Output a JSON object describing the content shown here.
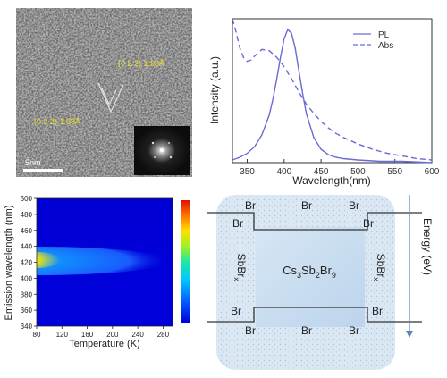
{
  "tem": {
    "lattice_label_1": "(0 2 2) 1.98Å",
    "lattice_label_2": "(0 2 2) 1.98Å",
    "scale_bar_label": "5nm"
  },
  "chart_data": [
    {
      "type": "line",
      "xlabel": "Wavelength(nm)",
      "ylabel": "Intensity (a.u.)",
      "xlim": [
        330,
        600
      ],
      "ylim": [
        0,
        1.08
      ],
      "xticks": [
        350,
        400,
        450,
        500,
        550,
        600
      ],
      "legend_position": "top-right",
      "series": [
        {
          "name": "PL",
          "style": "solid",
          "color": "#6a6ad6",
          "x": [
            330,
            340,
            350,
            360,
            370,
            380,
            385,
            390,
            395,
            400,
            405,
            410,
            415,
            420,
            425,
            430,
            440,
            450,
            460,
            470,
            480,
            500,
            530,
            560,
            600
          ],
          "y": [
            0.02,
            0.04,
            0.07,
            0.12,
            0.21,
            0.36,
            0.48,
            0.63,
            0.79,
            0.93,
            1.0,
            0.97,
            0.86,
            0.69,
            0.52,
            0.37,
            0.19,
            0.1,
            0.06,
            0.04,
            0.03,
            0.02,
            0.01,
            0.01,
            0.0
          ]
        },
        {
          "name": "Abs",
          "style": "dashed",
          "color": "#6a6ad6",
          "x": [
            330,
            335,
            340,
            345,
            350,
            355,
            360,
            370,
            380,
            390,
            400,
            410,
            420,
            430,
            440,
            450,
            460,
            470,
            480,
            500,
            520,
            540,
            560,
            580,
            600
          ],
          "y": [
            1.08,
            0.98,
            0.86,
            0.79,
            0.76,
            0.77,
            0.8,
            0.85,
            0.84,
            0.79,
            0.72,
            0.63,
            0.53,
            0.44,
            0.37,
            0.31,
            0.26,
            0.22,
            0.19,
            0.14,
            0.1,
            0.07,
            0.05,
            0.03,
            0.02
          ]
        }
      ]
    },
    {
      "type": "heatmap",
      "xlabel": "Temperature (K)",
      "ylabel": "Emission wavelength (nm)",
      "xlim": [
        80,
        295
      ],
      "ylim": [
        340,
        500
      ],
      "xticks": [
        80,
        120,
        160,
        200,
        240,
        280
      ],
      "yticks": [
        340,
        360,
        380,
        400,
        420,
        440,
        460,
        480,
        500
      ],
      "colorscale": [
        "#0000d8",
        "#0050ff",
        "#00c8ff",
        "#20e8a0",
        "#a0f020",
        "#ffe000",
        "#ff7000",
        "#e01000"
      ],
      "peak": {
        "temperature": 80,
        "wavelength": 422,
        "intensity": 1.0
      },
      "peak_shift": {
        "temperatures": [
          80,
          120,
          160,
          200,
          240
        ],
        "wavelengths": [
          422,
          416,
          410,
          405,
          402
        ]
      },
      "peak_intensity": {
        "temperatures": [
          80,
          100,
          120,
          140,
          160,
          180,
          200,
          220,
          240,
          280
        ],
        "intensities": [
          1.0,
          0.72,
          0.55,
          0.47,
          0.42,
          0.37,
          0.33,
          0.28,
          0.22,
          0.12
        ]
      }
    }
  ],
  "band": {
    "br_labels": [
      "Br",
      "Br",
      "Br",
      "Br",
      "Br",
      "Br",
      "Br",
      "Br",
      "Br",
      "Br",
      "Br",
      "Br"
    ],
    "center_label_parts": [
      "Cs",
      "3",
      "Sb",
      "2",
      "Br",
      "9"
    ],
    "side_label_parts": [
      "SbBr",
      "x"
    ],
    "axis_label": "Energy (eV)",
    "colors": {
      "panel_fill": "#dbe8f4",
      "box_fill": "#c9ddef",
      "arrow": "#5a84b4"
    }
  }
}
